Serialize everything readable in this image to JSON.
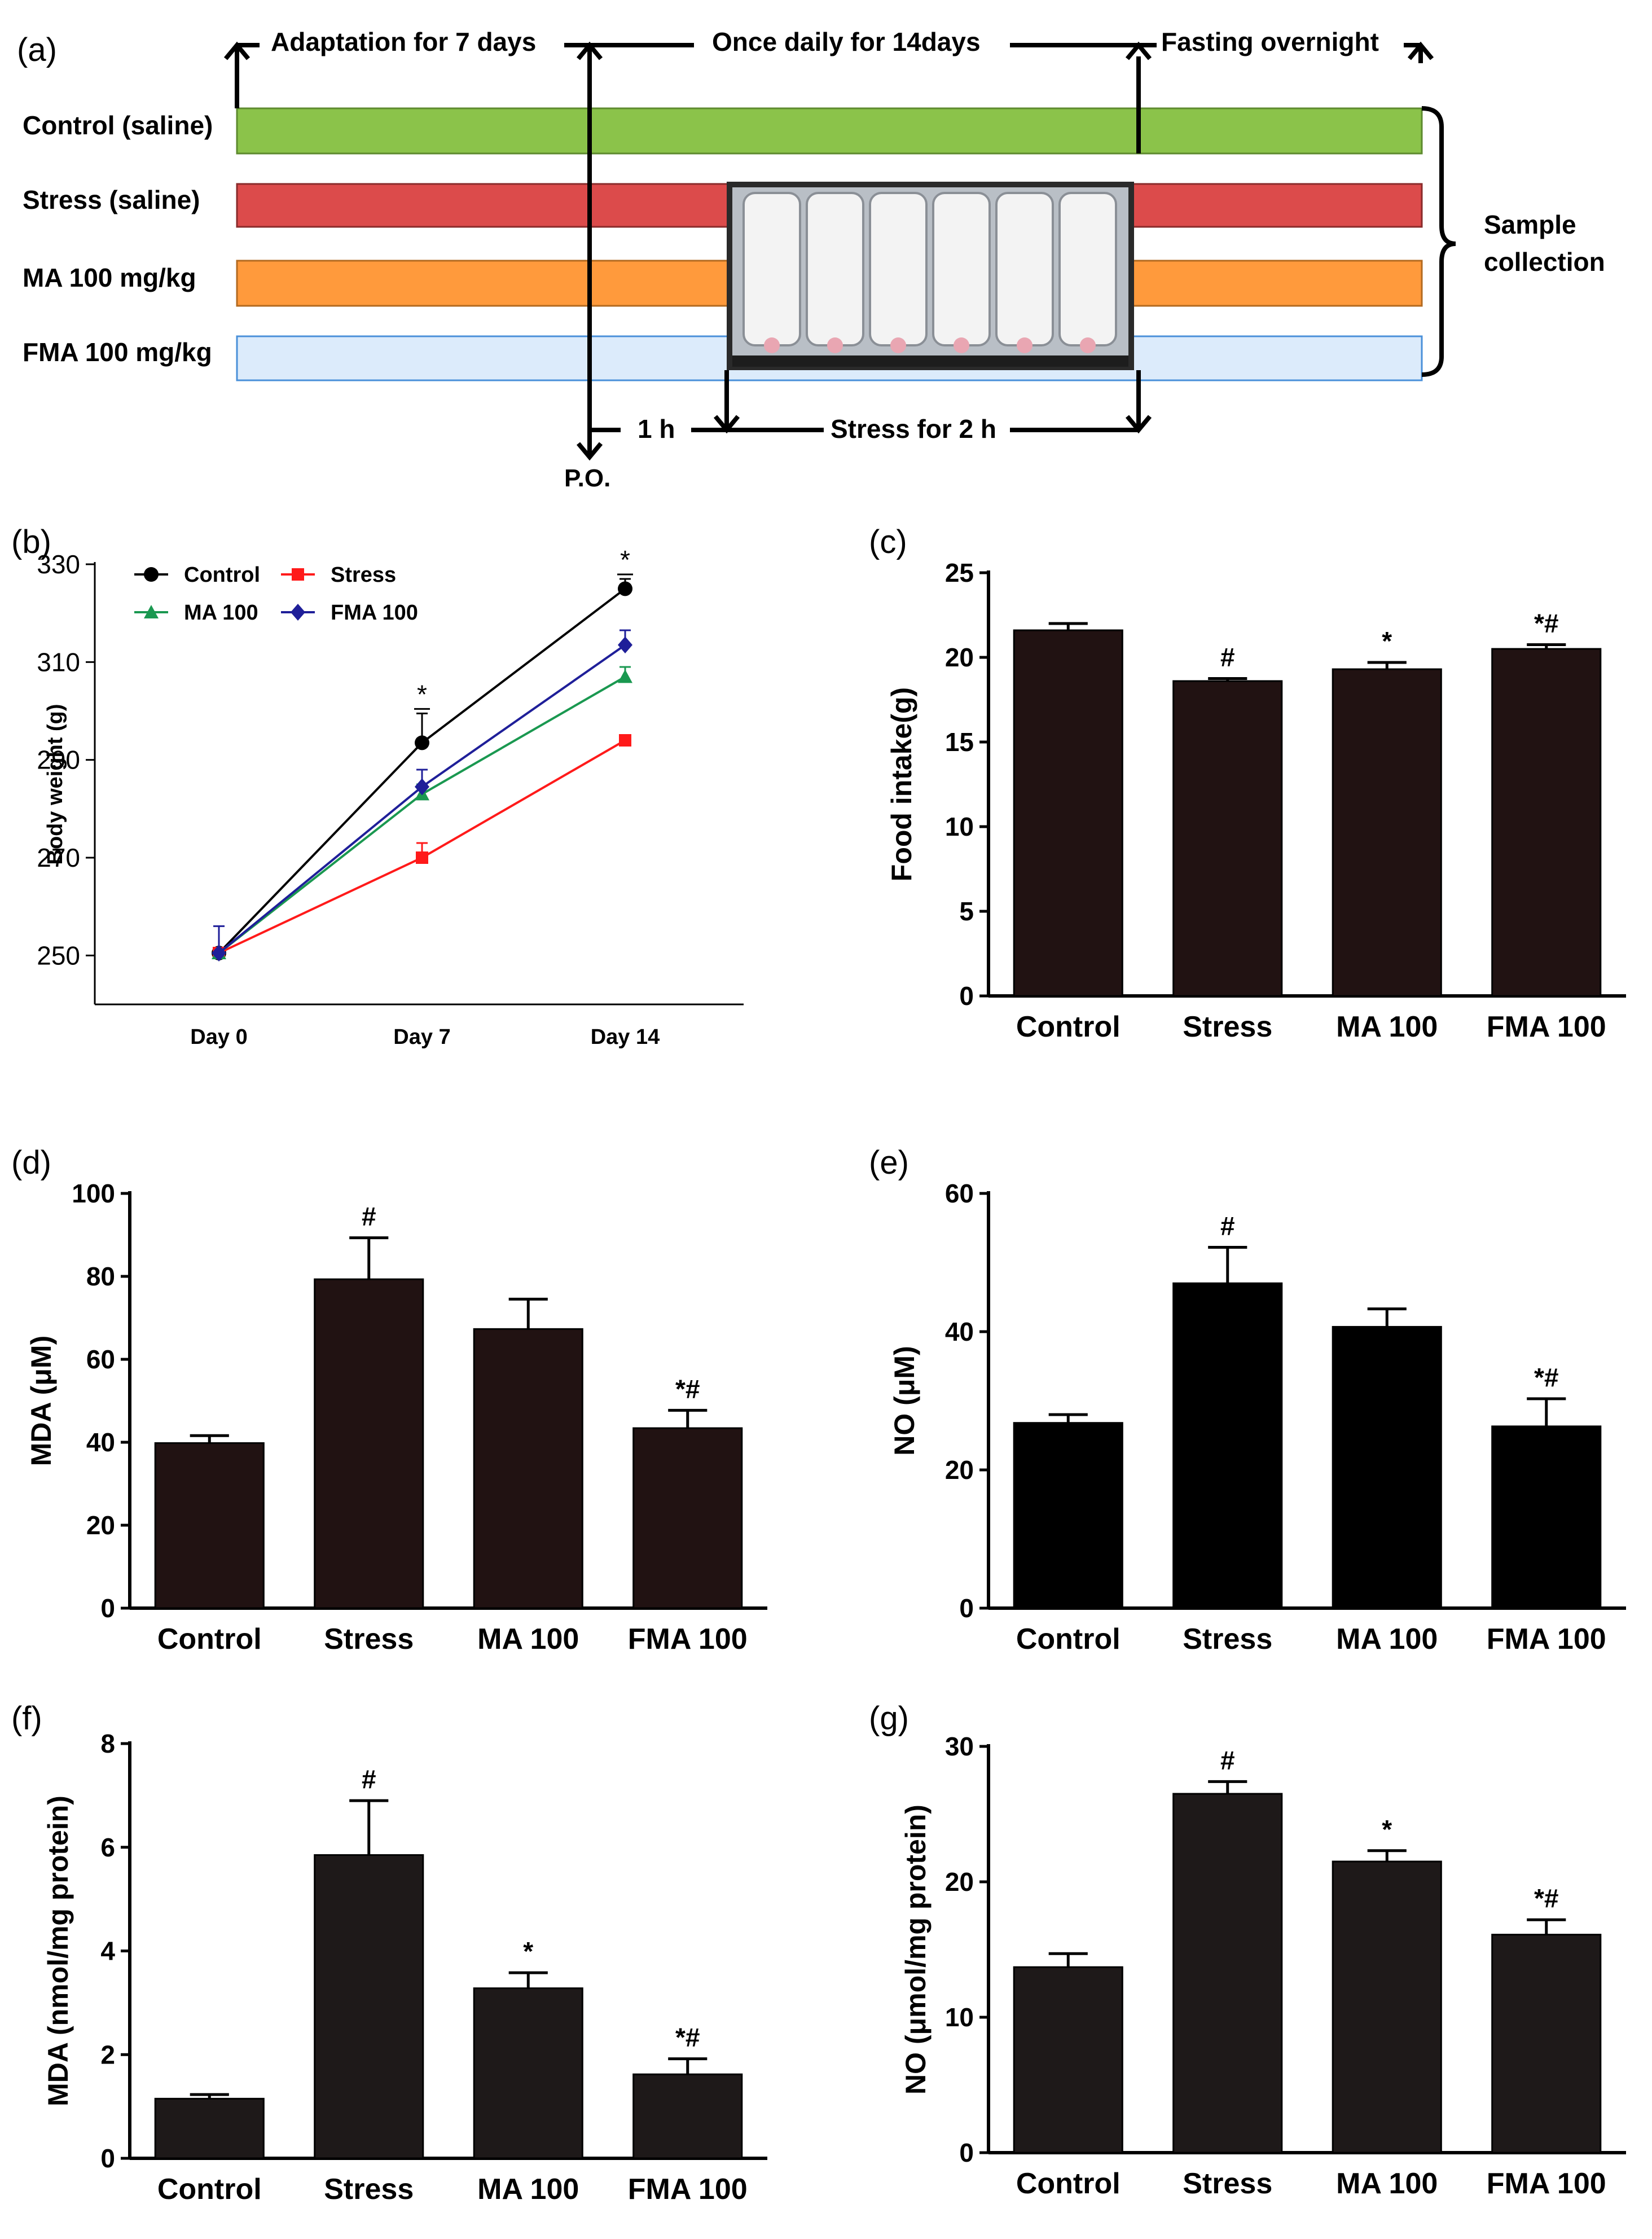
{
  "scheme": {
    "panel_label": "(a)",
    "phases": [
      "Adaptation for 7 days",
      "Once daily for 14days",
      "Fasting overnight"
    ],
    "groups": [
      {
        "name": "Control (saline)",
        "color": "#8bc34a"
      },
      {
        "name": "Stress (saline)",
        "color": "#dc4b4b"
      },
      {
        "name": "MA 100 mg/kg",
        "color": "#ff9a3c"
      },
      {
        "name": "FMA 100 mg/kg",
        "color": "#dcebfb"
      }
    ],
    "sample_collection": [
      "Sample",
      "collection"
    ],
    "one_h": "1 h",
    "stress_2h": "Stress for 2 h",
    "po": "P.O.",
    "photo_alt": "restraint-tube-photo"
  },
  "chart_data": [
    {
      "panel": "(b)",
      "type": "line",
      "categories": [
        "Day 0",
        "Day 7",
        "Day 14"
      ],
      "ylabel": "Body weight (g)",
      "ylim": [
        240,
        330
      ],
      "yticks": [
        250,
        270,
        290,
        310,
        330
      ],
      "series": [
        {
          "name": "Control",
          "color": "#000000",
          "marker": "circle",
          "values": [
            250.5,
            293.5,
            325
          ],
          "errors": [
            0,
            6,
            2
          ]
        },
        {
          "name": "Stress",
          "color": "#ff1a1a",
          "marker": "square",
          "values": [
            250.5,
            270,
            294
          ],
          "errors": [
            0,
            3,
            1
          ]
        },
        {
          "name": "MA 100",
          "color": "#1a9850",
          "marker": "triangle",
          "values": [
            250.5,
            283,
            307
          ],
          "errors": [
            0,
            2,
            2
          ]
        },
        {
          "name": "FMA 100",
          "color": "#1f1f99",
          "marker": "diamond",
          "values": [
            250.5,
            284.5,
            313.5
          ],
          "errors": [
            5.5,
            3.5,
            3
          ]
        }
      ],
      "annotations": [
        {
          "x": "Day 7",
          "text": "*"
        },
        {
          "x": "Day 14",
          "text": "*"
        }
      ]
    },
    {
      "panel": "(c)",
      "type": "bar",
      "categories": [
        "Control",
        "Stress",
        "MA 100",
        "FMA 100"
      ],
      "values": [
        21.6,
        18.6,
        19.3,
        20.5
      ],
      "errors": [
        0.4,
        0.15,
        0.4,
        0.25
      ],
      "sig": [
        "",
        "#",
        "*",
        "*#"
      ],
      "ylabel": "Food intake(g)",
      "ylim": [
        0,
        25
      ],
      "yticks": [
        0,
        5,
        10,
        15,
        20,
        25
      ],
      "bar_color": "#211212"
    },
    {
      "panel": "(d)",
      "type": "bar",
      "categories": [
        "Control",
        "Stress",
        "MA 100",
        "FMA 100"
      ],
      "values": [
        39.8,
        79.3,
        67.3,
        43.4
      ],
      "errors": [
        1.8,
        10,
        7.2,
        4.3
      ],
      "sig": [
        "",
        "#",
        "",
        "*#"
      ],
      "ylabel": "MDA (μM)",
      "ylim": [
        0,
        100
      ],
      "yticks": [
        0,
        20,
        40,
        60,
        80,
        100
      ],
      "bar_color": "#211212"
    },
    {
      "panel": "(e)",
      "type": "bar",
      "categories": [
        "Control",
        "Stress",
        "MA 100",
        "FMA 100"
      ],
      "values": [
        26.8,
        47,
        40.7,
        26.3
      ],
      "errors": [
        1.2,
        5.2,
        2.6,
        4
      ],
      "sig": [
        "",
        "#",
        "",
        "*#"
      ],
      "ylabel": "NO (μM)",
      "ylim": [
        0,
        60
      ],
      "yticks": [
        0,
        20,
        40,
        60
      ],
      "bar_color": "#000000"
    },
    {
      "panel": "(f)",
      "type": "bar",
      "categories": [
        "Control",
        "Stress",
        "MA 100",
        "FMA 100"
      ],
      "values": [
        1.15,
        5.85,
        3.28,
        1.62
      ],
      "errors": [
        0.08,
        1.05,
        0.3,
        0.3
      ],
      "sig": [
        "",
        "#",
        "*",
        "*#"
      ],
      "ylabel": "MDA (nmol/mg protein)",
      "ylim": [
        0,
        8
      ],
      "yticks": [
        0,
        2,
        4,
        6,
        8
      ],
      "bar_color": "#1e1919"
    },
    {
      "panel": "(g)",
      "type": "bar",
      "categories": [
        "Control",
        "Stress",
        "MA 100",
        "FMA 100"
      ],
      "values": [
        13.7,
        26.5,
        21.5,
        16.1
      ],
      "errors": [
        1,
        0.9,
        0.8,
        1.1
      ],
      "sig": [
        "",
        "#",
        "*",
        "*#"
      ],
      "ylabel": "NO (μmol/mg protein)",
      "ylim": [
        0,
        30
      ],
      "yticks": [
        0,
        10,
        20,
        30
      ],
      "bar_color": "#1e1919"
    }
  ]
}
